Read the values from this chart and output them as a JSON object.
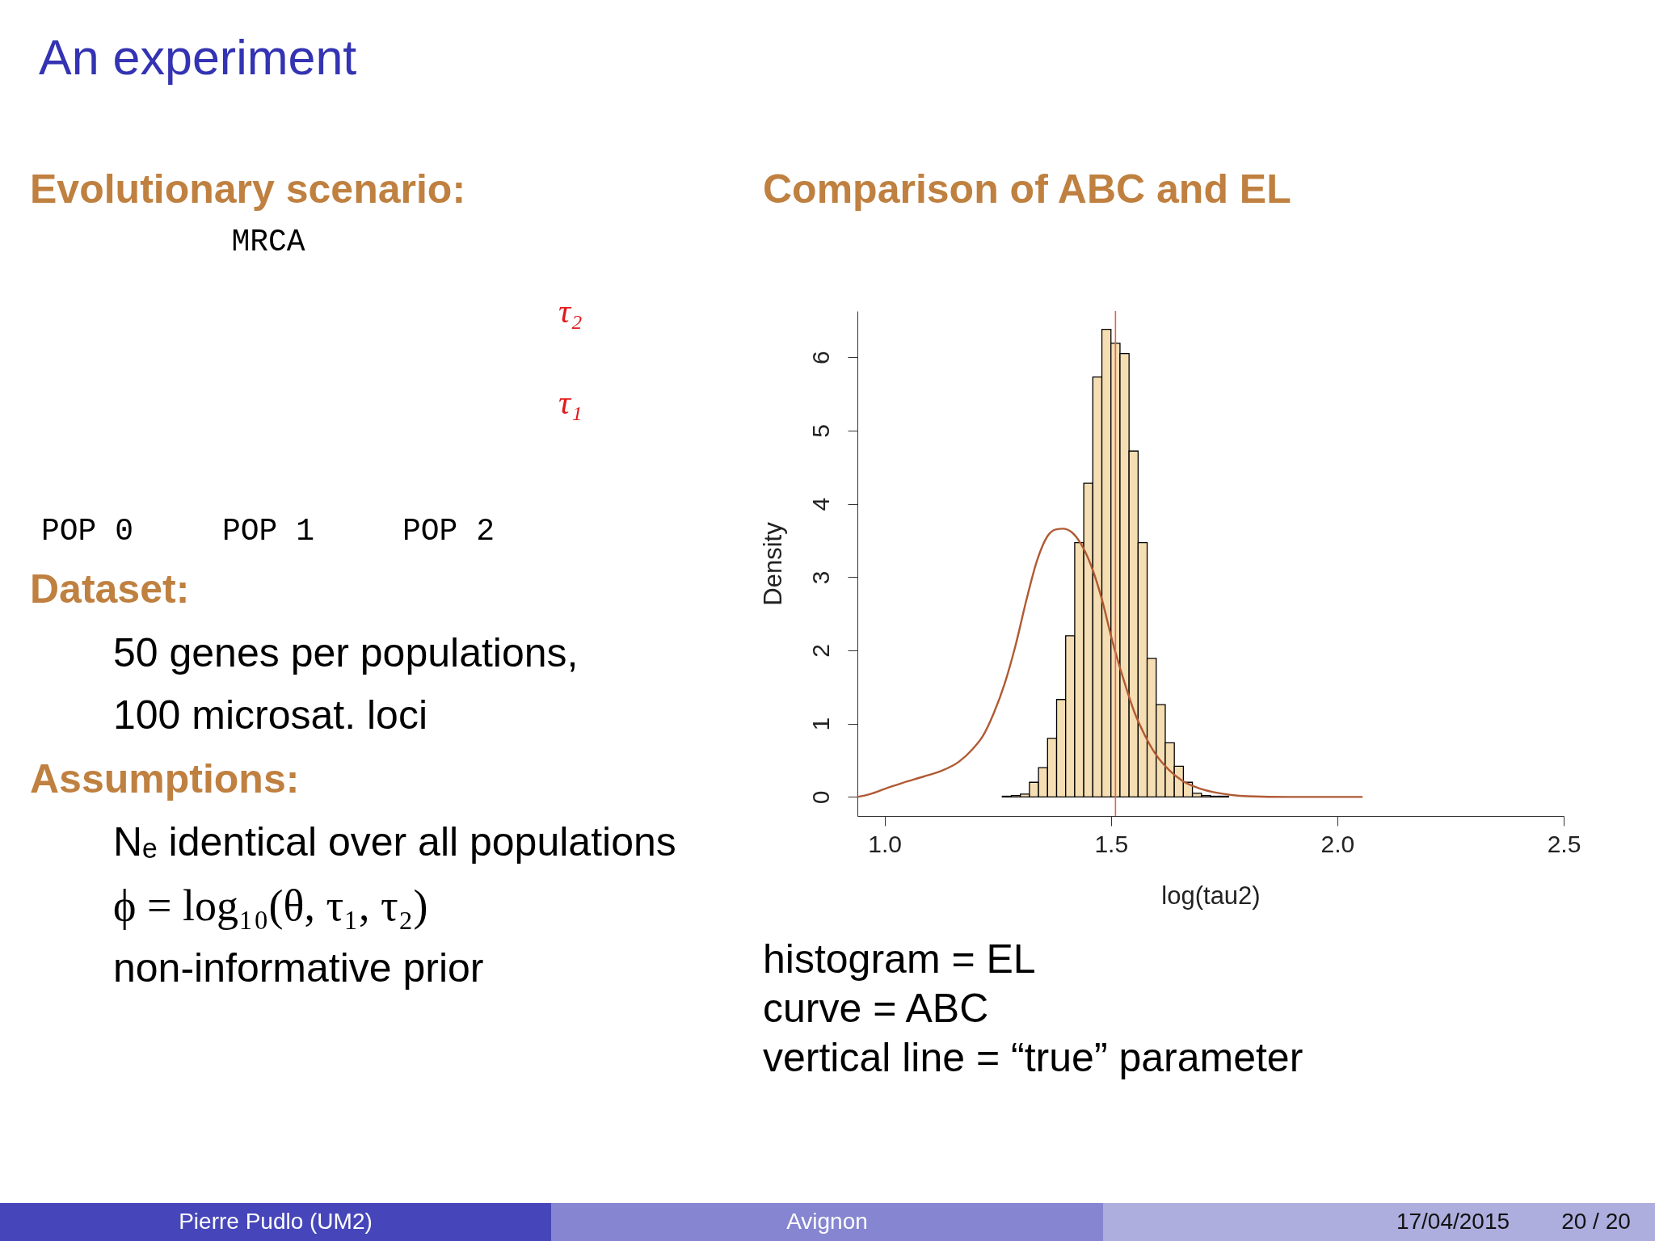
{
  "chart_data": [
    {
      "type": "other",
      "title": "An experiment",
      "annotations": [
        "Evolutionary scenario:",
        "MRCA",
        "τ₂",
        "τ₁",
        "POP 0",
        "POP 1",
        "POP 2",
        "Dataset:",
        "50 genes per populations,",
        "100 microsat. loci",
        "Assumptions:",
        "Nₑ identical over all populations",
        "ϕ = log₁₀(θ, τ₁, τ₂)",
        "non-informative prior",
        "Pierre Pudlo (UM2)",
        "Avignon",
        "17/04/2015",
        "20 / 20"
      ]
    },
    {
      "type": "histogram",
      "title": "Comparison of ABC and EL",
      "xlabel": "log(tau2)",
      "ylabel": "Density",
      "xlim": [
        0.94,
        2.5
      ],
      "ylim": [
        -0.26,
        6.63
      ],
      "xticks": [
        {
          "value": 1.0,
          "label": "1.0"
        },
        1.5,
        {
          "value": 2.0,
          "label": "2.0"
        },
        2.5
      ],
      "yticks": [
        0,
        1,
        2,
        3,
        4,
        5,
        6
      ],
      "series": [
        {
          "type": "histogram",
          "color": "#f5deb3",
          "bins": [
            1.26,
            1.28,
            1.3,
            1.32,
            1.34,
            1.36,
            1.38,
            1.4,
            1.42,
            1.44,
            1.46,
            1.48,
            1.5,
            1.52,
            1.54,
            1.56,
            1.58,
            1.6,
            1.62,
            1.64,
            1.66,
            1.68,
            1.7,
            1.72,
            1.74,
            1.76
          ],
          "values": [
            0.01,
            0.02,
            0.04,
            0.2,
            0.4,
            0.8,
            1.33,
            2.2,
            3.47,
            4.28,
            5.73,
            6.38,
            6.19,
            6.05,
            4.72,
            3.47,
            1.89,
            1.26,
            0.74,
            0.42,
            0.2,
            0.05,
            0.02,
            0.01,
            0.01
          ]
        },
        {
          "type": "line",
          "color": "#b05a34",
          "x": [
            0.94,
            0.968,
            1.004,
            1.039,
            1.087,
            1.123,
            1.164,
            1.194,
            1.218,
            1.241,
            1.265,
            1.289,
            1.313,
            1.337,
            1.36,
            1.378,
            1.394,
            1.414,
            1.434,
            1.456,
            1.479,
            1.503,
            1.527,
            1.551,
            1.575,
            1.598,
            1.628,
            1.658,
            1.694,
            1.741,
            1.801,
            1.896,
            2.054
          ],
          "values": [
            0,
            0.04,
            0.12,
            0.19,
            0.28,
            0.35,
            0.48,
            0.65,
            0.84,
            1.14,
            1.54,
            2.06,
            2.68,
            3.23,
            3.56,
            3.65,
            3.66,
            3.61,
            3.45,
            3.16,
            2.72,
            2.13,
            1.62,
            1.17,
            0.84,
            0.59,
            0.37,
            0.22,
            0.12,
            0.05,
            0.01,
            0,
            0
          ]
        }
      ],
      "ref_lines": [
        {
          "axis": "x",
          "value": 1.51,
          "color": "#e5644e"
        }
      ],
      "annotations": [
        "histogram = EL",
        "curve = ABC",
        "vertical line = “true” parameter"
      ]
    }
  ]
}
